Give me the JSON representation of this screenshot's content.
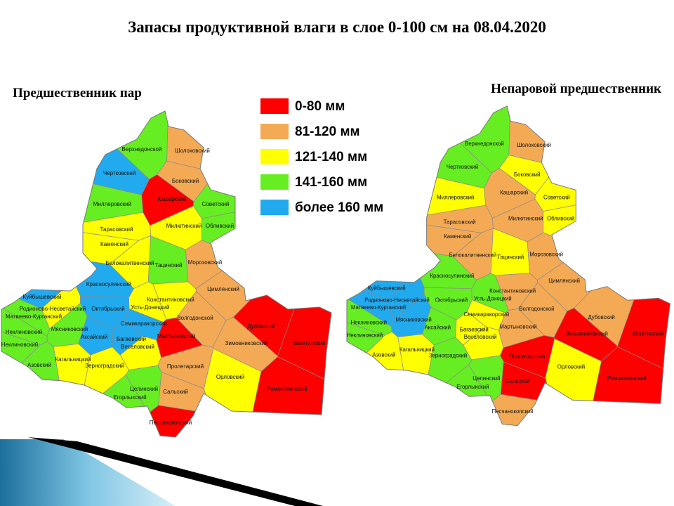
{
  "title": "Запасы продуктивной  влаги в слое  0-100 см на 08.04.2020",
  "legend": [
    {
      "label": "0-80 мм",
      "color": "#ff0000"
    },
    {
      "label": "81-120 мм",
      "color": "#f4aa55"
    },
    {
      "label": "121-140 мм",
      "color": "#ffff00"
    },
    {
      "label": "141-160 мм",
      "color": "#66ee22"
    },
    {
      "label": "более 160 мм",
      "color": "#22aaee"
    }
  ],
  "maps": [
    {
      "title": "Предшественник пар",
      "districts": [
        {
          "name": "Верхнедонской",
          "color": "#66ee22"
        },
        {
          "name": "Шолоховский",
          "color": "#f4aa55"
        },
        {
          "name": "Чертковский",
          "color": "#22aaee"
        },
        {
          "name": "Боковский",
          "color": "#f4aa55"
        },
        {
          "name": "Кашарский",
          "color": "#ff0000"
        },
        {
          "name": "Миллеровский",
          "color": "#66ee22"
        },
        {
          "name": "Советский",
          "color": "#66ee22"
        },
        {
          "name": "Тарасовский",
          "color": "#ffff00"
        },
        {
          "name": "Милютинский",
          "color": "#ffff00"
        },
        {
          "name": "Обливский",
          "color": "#66ee22"
        },
        {
          "name": "Каменский",
          "color": "#ffff00"
        },
        {
          "name": "Белокалитвенский",
          "color": "#ffff00"
        },
        {
          "name": "Тацинский",
          "color": "#66ee22"
        },
        {
          "name": "Морозовский",
          "color": "#f4aa55"
        },
        {
          "name": "Красносулинский",
          "color": "#22aaee"
        },
        {
          "name": "Цимлянский",
          "color": "#f4aa55"
        },
        {
          "name": "Куйбышевский",
          "color": "#22aaee"
        },
        {
          "name": "Константиновский",
          "color": "#ffff00"
        },
        {
          "name": "Родионово-Несветайский",
          "color": "#ffff00"
        },
        {
          "name": "Октябрьский",
          "color": "#22aaee"
        },
        {
          "name": "Усть-Донецкий",
          "color": "#ffff00"
        },
        {
          "name": "Матвеево-Курганский",
          "color": "#66ee22"
        },
        {
          "name": "Волгодонской",
          "color": "#f4aa55"
        },
        {
          "name": "Семикаракорский",
          "color": "#22aaee"
        },
        {
          "name": "Дубовский",
          "color": "#ff0000"
        },
        {
          "name": "Неклиновский",
          "color": "#66ee22"
        },
        {
          "name": "Мясниковский",
          "color": "#66ee22"
        },
        {
          "name": "Аксайский",
          "color": "#22aaee"
        },
        {
          "name": "Мартыновский",
          "color": "#ff0000"
        },
        {
          "name": "Багаевский",
          "color": "#22aaee"
        },
        {
          "name": "Веселовский",
          "color": "#ffff00"
        },
        {
          "name": "Заветинский",
          "color": "#ff0000"
        },
        {
          "name": "Зимовниковский",
          "color": "#f4aa55"
        },
        {
          "name": "Неклиновский",
          "color": "#66ee22"
        },
        {
          "name": "Кагальницкий",
          "color": "#ffff00"
        },
        {
          "name": "Азовский",
          "color": "#66ee22"
        },
        {
          "name": "Зерноградский",
          "color": "#ffff00"
        },
        {
          "name": "Пролетарский",
          "color": "#f4aa55"
        },
        {
          "name": "Орловский",
          "color": "#ffff00"
        },
        {
          "name": "Ремонтненский",
          "color": "#ff0000"
        },
        {
          "name": "Целинский",
          "color": "#66ee22"
        },
        {
          "name": "Сальский",
          "color": "#f4aa55"
        },
        {
          "name": "Егорлыкский",
          "color": "#66ee22"
        },
        {
          "name": "Песчанокопский",
          "color": "#ff0000"
        }
      ]
    },
    {
      "title": "Непаровой предшественник",
      "districts": [
        {
          "name": "Верхнедонской",
          "color": "#66ee22"
        },
        {
          "name": "Шолоховский",
          "color": "#f4aa55"
        },
        {
          "name": "Чертковский",
          "color": "#66ee22"
        },
        {
          "name": "Боковский",
          "color": "#ffff00"
        },
        {
          "name": "Кашарский",
          "color": "#f4aa55"
        },
        {
          "name": "Миллеровский",
          "color": "#ffff00"
        },
        {
          "name": "Советский",
          "color": "#ffff00"
        },
        {
          "name": "Тарасовский",
          "color": "#f4aa55"
        },
        {
          "name": "Милютинский",
          "color": "#f4aa55"
        },
        {
          "name": "Обливский",
          "color": "#ffff00"
        },
        {
          "name": "Каменский",
          "color": "#f4aa55"
        },
        {
          "name": "Белокалитвенский",
          "color": "#f4aa55"
        },
        {
          "name": "Тацинский",
          "color": "#ffff00"
        },
        {
          "name": "Морозовский",
          "color": "#f4aa55"
        },
        {
          "name": "Красносулинский",
          "color": "#66ee22"
        },
        {
          "name": "Цимлянский",
          "color": "#f4aa55"
        },
        {
          "name": "Куйбышевский",
          "color": "#22aaee"
        },
        {
          "name": "Константиновский",
          "color": "#f4aa55"
        },
        {
          "name": "Родионово-Несветайский",
          "color": "#22aaee"
        },
        {
          "name": "Октябрьский",
          "color": "#66ee22"
        },
        {
          "name": "Усть-Донецкий",
          "color": "#66ee22"
        },
        {
          "name": "Матвеево-Курганский",
          "color": "#22aaee"
        },
        {
          "name": "Волгодонской",
          "color": "#f4aa55"
        },
        {
          "name": "Семикаракорский",
          "color": "#ffff00"
        },
        {
          "name": "Дубовский",
          "color": "#f4aa55"
        },
        {
          "name": "Неклиновский",
          "color": "#66ee22"
        },
        {
          "name": "Мясниковский",
          "color": "#22aaee"
        },
        {
          "name": "Аксайский",
          "color": "#66ee22"
        },
        {
          "name": "Мартыновский",
          "color": "#f4aa55"
        },
        {
          "name": "Багаевский",
          "color": "#ffff00"
        },
        {
          "name": "Веселовский",
          "color": "#ffff00"
        },
        {
          "name": "Заветинский",
          "color": "#ff0000"
        },
        {
          "name": "Зимовниковский",
          "color": "#ff0000"
        },
        {
          "name": "Неклиновский",
          "color": "#66ee22"
        },
        {
          "name": "Кагальницкий",
          "color": "#ffff00"
        },
        {
          "name": "Азовский",
          "color": "#ffff00"
        },
        {
          "name": "Зерноградский",
          "color": "#66ee22"
        },
        {
          "name": "Пролетарский",
          "color": "#ff0000"
        },
        {
          "name": "Орловский",
          "color": "#ffff00"
        },
        {
          "name": "Ремонтненский",
          "color": "#ff0000"
        },
        {
          "name": "Целинский",
          "color": "#66ee22"
        },
        {
          "name": "Сальский",
          "color": "#ff0000"
        },
        {
          "name": "Егорлыкский",
          "color": "#66ee22"
        },
        {
          "name": "Песчанокопский",
          "color": "#f4aa55"
        }
      ]
    }
  ]
}
